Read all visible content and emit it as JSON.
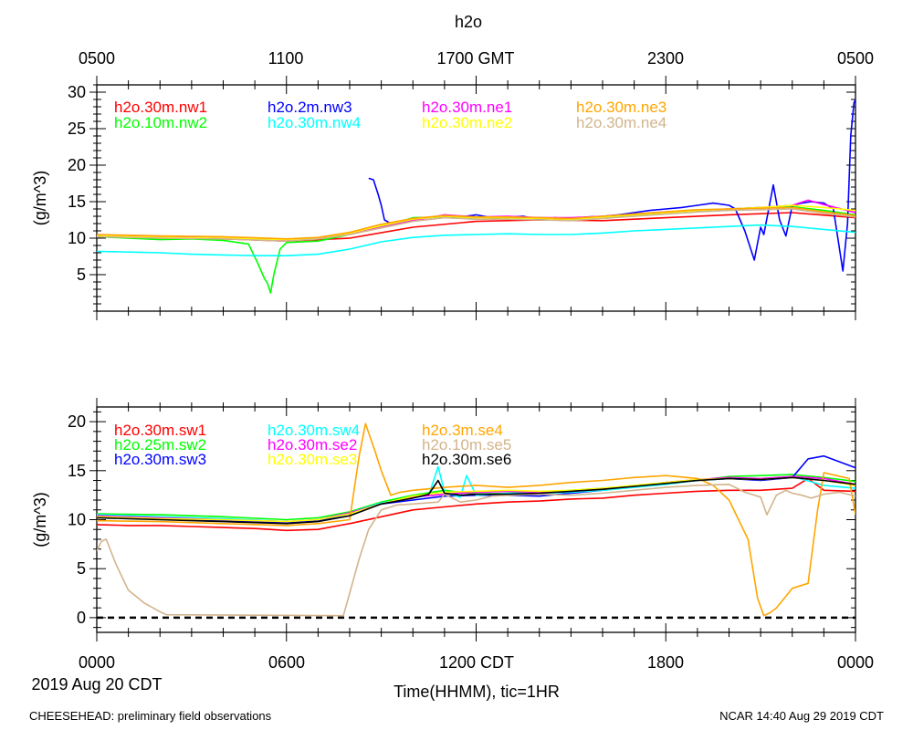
{
  "page": {
    "title": "h2o",
    "top_axis_labels": [
      "0500",
      "1100",
      "1700 GMT",
      "2300",
      "0500"
    ],
    "bottom_axis_labels": [
      "0000",
      "0600",
      "1200 CDT",
      "1800",
      "0000"
    ],
    "date_label": "2019 Aug 20 CDT",
    "xlabel": "Time(HHMM), tic=1HR",
    "footer_left": "CHEESEHEAD: preliminary field observations",
    "footer_right": "NCAR 14:40 Aug 29 2019 CDT"
  },
  "chart_data": [
    {
      "type": "line",
      "title": "h2o",
      "ylabel": "(g/m^3)",
      "xlabel": "Time(HHMM), tic=1HR",
      "x_units": "hours since 0000 CDT",
      "xlim": [
        0,
        24
      ],
      "ylim": [
        0,
        31
      ],
      "yticks": [
        5,
        10,
        15,
        20,
        25,
        30
      ],
      "series": [
        {
          "name": "h2o.30m.nw1",
          "color": "#ff0000",
          "x": [
            0,
            2,
            4,
            6,
            8,
            10,
            12,
            14,
            16,
            18,
            20,
            22,
            24
          ],
          "values": [
            10.2,
            10.0,
            9.9,
            9.6,
            10.0,
            11.5,
            12.3,
            12.5,
            12.4,
            12.8,
            13.2,
            13.5,
            12.8
          ]
        },
        {
          "name": "h2o.10m.nw2",
          "color": "#00ff00",
          "x": [
            0,
            1,
            2,
            3,
            4,
            4.8,
            5.1,
            5.3,
            5.4,
            5.5,
            5.6,
            5.8,
            6,
            7,
            8,
            9,
            10,
            11,
            12,
            13,
            14,
            15,
            16,
            17,
            18,
            19,
            20,
            21,
            22,
            23,
            24
          ],
          "values": [
            10.2,
            10.0,
            9.8,
            9.9,
            9.7,
            9.2,
            6.5,
            4.5,
            3.8,
            2.5,
            5.0,
            8.5,
            9.4,
            9.6,
            10.5,
            11.5,
            12.8,
            12.9,
            12.6,
            12.7,
            12.8,
            12.6,
            12.9,
            13.0,
            13.5,
            13.8,
            14.0,
            14.2,
            14.3,
            13.8,
            13.2
          ]
        },
        {
          "name": "h2o.2m.nw3",
          "color": "#0000ff",
          "x": [
            8.6,
            8.75,
            8.9,
            9.0,
            9.1,
            9.3,
            9.6,
            10,
            10.5,
            11,
            11.5,
            12,
            12.5,
            13,
            13.5,
            14,
            14.5,
            15,
            15.5,
            16,
            16.5,
            17,
            17.5,
            18,
            18.5,
            19,
            19.5,
            20,
            20.2,
            20.5,
            20.8,
            21.0,
            21.1,
            21.4,
            21.6,
            21.8,
            22.0,
            22.3,
            22.6,
            23,
            23.3,
            23.6,
            23.75,
            23.85,
            23.95,
            24
          ],
          "values": [
            18.2,
            18.0,
            16.0,
            14.5,
            12.5,
            12.0,
            12.2,
            12.5,
            12.8,
            13.0,
            12.9,
            13.2,
            12.8,
            12.9,
            13.0,
            12.5,
            12.8,
            12.6,
            12.9,
            13.0,
            13.2,
            13.5,
            13.8,
            14.0,
            14.2,
            14.5,
            14.8,
            14.5,
            14.0,
            11.0,
            7.0,
            11.5,
            10.5,
            17.3,
            12.5,
            10.3,
            14.5,
            14.8,
            15.0,
            14.8,
            14.0,
            5.5,
            12.0,
            24.0,
            28.5,
            29.0
          ]
        },
        {
          "name": "h2o.30m.nw4",
          "color": "#00ffff",
          "x": [
            0,
            1,
            2,
            3,
            4,
            5,
            6,
            7,
            8,
            9,
            10,
            11,
            12,
            13,
            14,
            15,
            16,
            17,
            18,
            19,
            20,
            21,
            22,
            23,
            24
          ],
          "values": [
            8.2,
            8.1,
            8.0,
            7.8,
            7.7,
            7.6,
            7.6,
            7.8,
            8.5,
            9.5,
            10.1,
            10.4,
            10.5,
            10.6,
            10.5,
            10.5,
            10.7,
            11.0,
            11.2,
            11.4,
            11.6,
            11.8,
            11.6,
            11.2,
            10.8
          ]
        },
        {
          "name": "h2o.30m.ne1",
          "color": "#ff00ff",
          "x": [
            0,
            2,
            4,
            6,
            7,
            8,
            9,
            10,
            11,
            12,
            13,
            14,
            15,
            16,
            17,
            18,
            19,
            20,
            21,
            22,
            22.5,
            23,
            24
          ],
          "values": [
            10.4,
            10.2,
            10.0,
            9.7,
            10.0,
            10.6,
            11.5,
            12.4,
            13.2,
            12.9,
            13.0,
            12.8,
            12.8,
            13.0,
            13.3,
            13.6,
            13.8,
            14.0,
            14.2,
            14.5,
            15.2,
            14.6,
            13.5
          ]
        },
        {
          "name": "h2o.30m.ne2",
          "color": "#ffff00",
          "x": [
            0,
            2,
            4,
            6,
            7,
            8,
            9,
            10,
            11,
            12,
            13,
            14,
            15,
            16,
            17,
            18,
            19,
            20,
            21,
            22,
            23,
            24
          ],
          "values": [
            10.3,
            10.1,
            10.0,
            9.8,
            10.0,
            10.7,
            11.7,
            12.6,
            13.0,
            12.8,
            12.8,
            12.7,
            12.6,
            12.9,
            13.2,
            13.5,
            13.8,
            14.0,
            14.2,
            14.5,
            14.2,
            13.8
          ]
        },
        {
          "name": "h2o.30m.ne3",
          "color": "#ffa500",
          "x": [
            0,
            2,
            4,
            6,
            7,
            8,
            9,
            10,
            11,
            12,
            13,
            14,
            15,
            16,
            17,
            18,
            19,
            20,
            21,
            22,
            23,
            24
          ],
          "values": [
            10.5,
            10.3,
            10.2,
            9.9,
            10.1,
            10.8,
            11.9,
            12.7,
            13.1,
            12.9,
            12.9,
            12.8,
            12.7,
            13.0,
            13.3,
            13.6,
            13.9,
            14.0,
            14.1,
            14.2,
            13.6,
            13.1
          ]
        },
        {
          "name": "h2o.30m.ne4",
          "color": "#d2b48c",
          "x": [
            0,
            2,
            4,
            6,
            7,
            8,
            9,
            10,
            11,
            12,
            13,
            14,
            15,
            16,
            17,
            18,
            19,
            20,
            21,
            22,
            23,
            24
          ],
          "values": [
            10.2,
            10.0,
            9.9,
            9.6,
            9.9,
            10.5,
            11.4,
            12.3,
            12.8,
            12.6,
            12.6,
            12.5,
            12.4,
            12.7,
            13.0,
            13.3,
            13.6,
            13.8,
            13.9,
            14.0,
            13.4,
            12.9
          ]
        }
      ]
    },
    {
      "type": "line",
      "ylabel": "(g/m^3)",
      "xlabel": "Time(HHMM), tic=1HR",
      "x_units": "hours since 0000 CDT",
      "xlim": [
        0,
        24
      ],
      "ylim": [
        -1.5,
        21.5
      ],
      "yticks": [
        0,
        5,
        10,
        15,
        20
      ],
      "zero_line": 0,
      "series": [
        {
          "name": "h2o.30m.sw1",
          "color": "#ff0000",
          "x": [
            0,
            1,
            2,
            3,
            4,
            5,
            6,
            7,
            8,
            9,
            10,
            11,
            12,
            13,
            14,
            15,
            16,
            17,
            18,
            19,
            20,
            21,
            22,
            22.5,
            23,
            24
          ],
          "values": [
            9.5,
            9.4,
            9.4,
            9.3,
            9.2,
            9.1,
            8.9,
            9.0,
            9.6,
            10.3,
            11.0,
            11.3,
            11.6,
            11.8,
            11.9,
            12.1,
            12.2,
            12.5,
            12.7,
            12.9,
            13.0,
            13.0,
            13.2,
            14.2,
            13.0,
            12.9
          ]
        },
        {
          "name": "h2o.25m.sw2",
          "color": "#00ff00",
          "x": [
            0,
            2,
            4,
            6,
            7,
            8,
            9,
            10,
            11,
            12,
            13,
            14,
            15,
            16,
            17,
            18,
            19,
            20,
            21,
            22,
            23,
            24
          ],
          "values": [
            10.6,
            10.5,
            10.3,
            10.0,
            10.2,
            10.8,
            11.8,
            12.5,
            13.0,
            12.6,
            12.7,
            12.8,
            13.0,
            13.2,
            13.4,
            13.7,
            14.0,
            14.4,
            14.5,
            14.6,
            14.3,
            13.9
          ]
        },
        {
          "name": "h2o.30m.sw3",
          "color": "#0000ff",
          "x": [
            0,
            2,
            4,
            6,
            7,
            8,
            9,
            10,
            11,
            12,
            13,
            14,
            15,
            16,
            17,
            18,
            19,
            20,
            21,
            22,
            22.5,
            23,
            24
          ],
          "values": [
            10.3,
            10.1,
            9.9,
            9.7,
            9.9,
            10.6,
            11.6,
            12.0,
            12.4,
            12.5,
            12.5,
            12.4,
            12.7,
            13.0,
            13.4,
            13.8,
            14.0,
            14.2,
            14.0,
            14.3,
            16.2,
            16.5,
            15.3
          ]
        },
        {
          "name": "h2o.30m.sw4",
          "color": "#00ffff",
          "x": [
            0,
            2,
            4,
            6,
            7,
            8,
            9,
            10,
            10.5,
            10.8,
            11,
            11.5,
            11.7,
            12,
            13,
            14,
            15,
            16,
            17,
            18,
            19,
            20,
            21,
            22,
            23,
            24
          ],
          "values": [
            10.5,
            10.3,
            10.1,
            9.8,
            10.0,
            10.7,
            11.7,
            12.2,
            12.5,
            15.4,
            12.8,
            12.3,
            14.5,
            12.5,
            12.7,
            12.7,
            12.8,
            13.0,
            13.3,
            13.6,
            14.0,
            14.2,
            14.1,
            14.4,
            13.5,
            13.2
          ]
        },
        {
          "name": "h2o.30m.se2",
          "color": "#ff00ff",
          "x": [
            0,
            2,
            4,
            6,
            7,
            8,
            9,
            10,
            11,
            12,
            13,
            14,
            15,
            16,
            17,
            18,
            19,
            20,
            21,
            22,
            23,
            24
          ],
          "values": [
            10.4,
            10.2,
            10.0,
            9.8,
            10.0,
            10.7,
            11.6,
            12.3,
            12.6,
            12.8,
            12.9,
            12.8,
            12.9,
            13.1,
            13.4,
            13.8,
            14.1,
            14.3,
            14.2,
            14.4,
            14.2,
            13.6
          ]
        },
        {
          "name": "h2o.30m.se3",
          "color": "#ffff00",
          "x": [
            0,
            2,
            4,
            6,
            7,
            8,
            9,
            10,
            11,
            12,
            13,
            14,
            15,
            16,
            17,
            18,
            19,
            20,
            21,
            22,
            23,
            24
          ],
          "values": [
            10.3,
            10.1,
            10.0,
            9.8,
            10.0,
            10.6,
            11.6,
            12.4,
            12.8,
            12.9,
            13.0,
            12.9,
            13.0,
            13.2,
            13.5,
            13.8,
            14.1,
            14.2,
            14.1,
            14.3,
            14.0,
            13.5
          ]
        },
        {
          "name": "h2o.3m.se4",
          "color": "#ffa500",
          "x": [
            0,
            2,
            4,
            6,
            7,
            8,
            8.3,
            8.5,
            8.8,
            9.0,
            9.3,
            9.6,
            10,
            11,
            12,
            13,
            14,
            15,
            16,
            17,
            18,
            19,
            19.5,
            20,
            20.6,
            20.9,
            21.1,
            21.3,
            21.5,
            22.0,
            22.5,
            22.8,
            23.0,
            23.4,
            23.8,
            24
          ],
          "values": [
            9.9,
            9.8,
            9.6,
            9.4,
            9.6,
            10.0,
            16.5,
            19.8,
            17.0,
            15.0,
            12.5,
            12.8,
            13.0,
            13.3,
            13.5,
            13.3,
            13.5,
            13.8,
            14.0,
            14.3,
            14.5,
            14.2,
            13.5,
            12.0,
            8.0,
            2.0,
            0.2,
            0.5,
            1.0,
            3.0,
            3.5,
            11.0,
            14.8,
            14.5,
            14.2,
            10.5
          ]
        },
        {
          "name": "h2o.10m.se5",
          "color": "#d2b48c",
          "x": [
            0,
            0.15,
            0.3,
            0.6,
            1.0,
            1.5,
            2.0,
            2.2,
            7.8,
            8.0,
            8.3,
            8.6,
            9.0,
            9.5,
            10,
            10.8,
            11,
            11.5,
            12,
            12.5,
            13,
            14,
            15,
            16,
            17,
            18,
            19,
            20,
            20.5,
            21,
            21.2,
            21.5,
            21.8,
            22,
            22.3,
            22.6,
            23.0,
            23.5,
            24
          ],
          "values": [
            6.8,
            7.8,
            8.0,
            5.5,
            2.8,
            1.5,
            0.6,
            0.3,
            0.2,
            2.5,
            6.0,
            9.0,
            11.0,
            11.5,
            11.6,
            11.8,
            12.6,
            11.8,
            12.0,
            12.4,
            12.5,
            12.6,
            12.5,
            12.7,
            13.0,
            13.3,
            13.5,
            13.6,
            12.8,
            12.3,
            10.5,
            12.5,
            13.0,
            12.7,
            12.5,
            12.2,
            12.6,
            12.8,
            12.4
          ]
        },
        {
          "name": "h2o.30m.se6",
          "color": "#000000",
          "x": [
            0,
            1,
            2,
            3,
            4,
            5,
            6,
            7,
            8,
            9,
            10,
            10.5,
            10.8,
            11,
            11.5,
            12,
            13,
            14,
            15,
            16,
            17,
            18,
            19,
            20,
            21,
            22,
            23,
            24
          ],
          "values": [
            10.2,
            10.1,
            10.0,
            9.9,
            9.8,
            9.7,
            9.6,
            9.8,
            10.4,
            11.6,
            12.2,
            12.6,
            14.0,
            12.7,
            12.5,
            12.6,
            12.6,
            12.7,
            12.9,
            13.1,
            13.4,
            13.7,
            14.0,
            14.2,
            14.1,
            14.3,
            14.0,
            13.6
          ]
        }
      ]
    }
  ]
}
